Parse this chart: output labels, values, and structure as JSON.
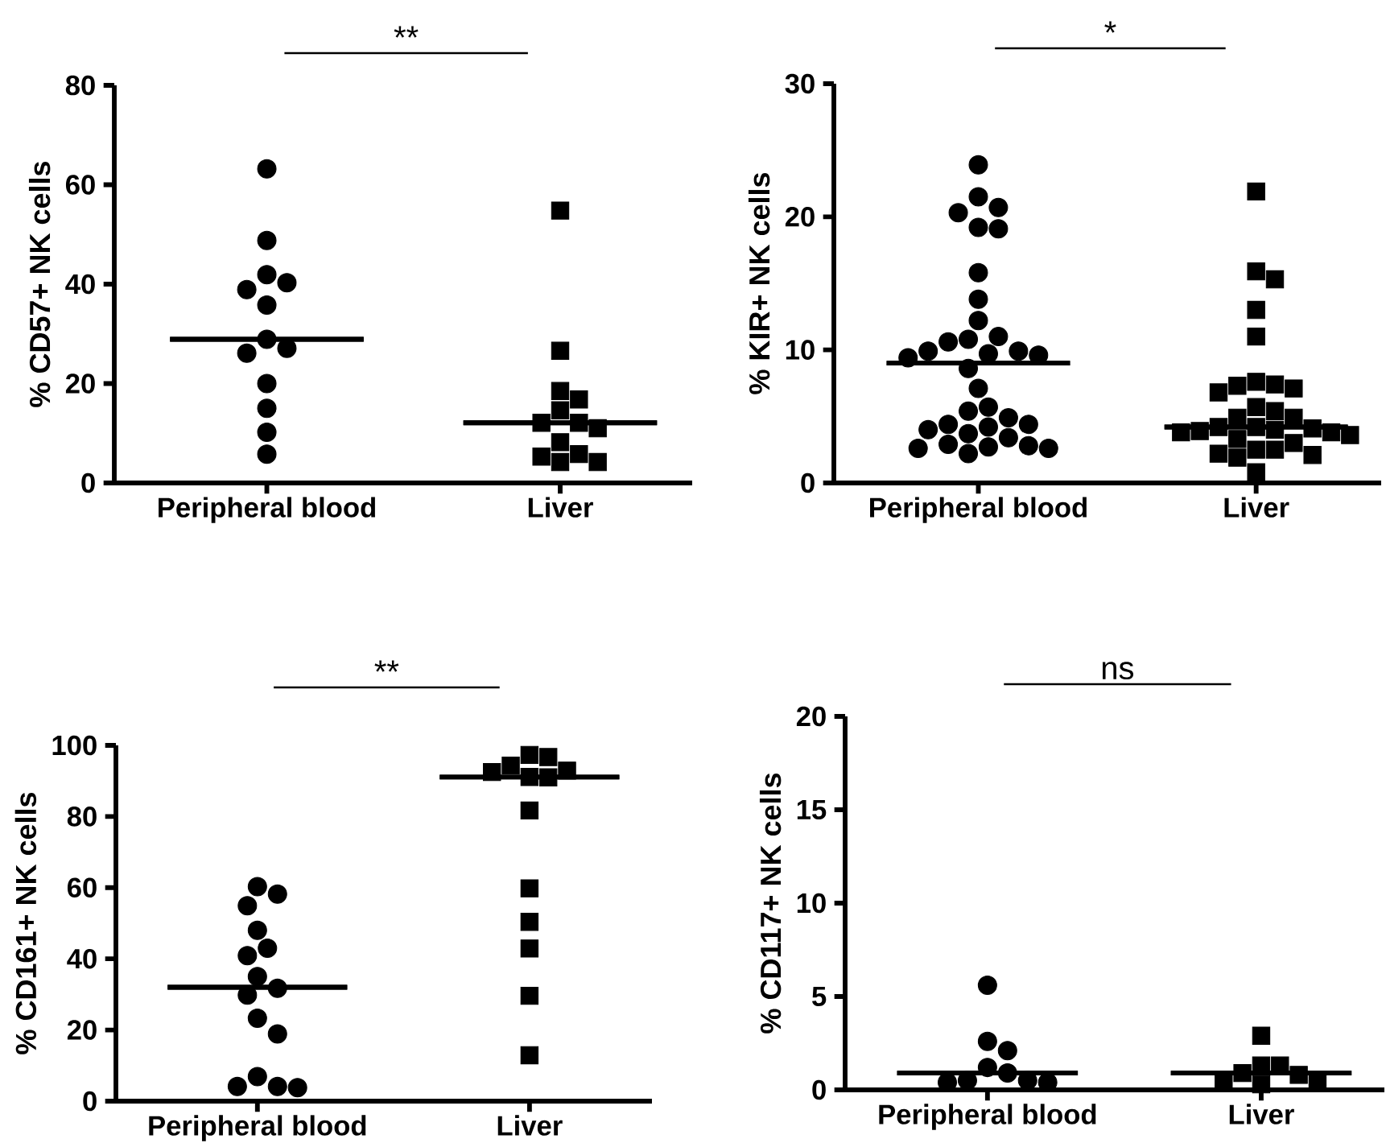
{
  "chart_data": [
    {
      "type": "scatter",
      "ylabel": "% CD57+ NK cells",
      "categories": [
        "Peripheral blood",
        "Liver"
      ],
      "ylim": [
        0,
        80
      ],
      "yticks": [
        0,
        20,
        40,
        60,
        80
      ],
      "annotations": [
        "**"
      ],
      "series": [
        {
          "marker": "circle",
          "color": "#000000",
          "x": [
            "Peripheral blood",
            "Peripheral blood",
            "Peripheral blood",
            "Peripheral blood",
            "Peripheral blood",
            "Peripheral blood",
            "Peripheral blood",
            "Peripheral blood",
            "Peripheral blood",
            "Peripheral blood",
            "Peripheral blood",
            "Peripheral blood",
            "Peripheral blood"
          ],
          "values": [
            63.2,
            48.8,
            41.9,
            40.3,
            38.9,
            35.8,
            28.9,
            27.1,
            26.1,
            20,
            15,
            10.2,
            5.8
          ]
        },
        {
          "marker": "square",
          "color": "#000000",
          "x": [
            "Liver",
            "Liver",
            "Liver",
            "Liver",
            "Liver",
            "Liver",
            "Liver",
            "Liver",
            "Liver",
            "Liver",
            "Liver",
            "Liver",
            "Liver"
          ],
          "values": [
            54.8,
            26.6,
            18.5,
            16.8,
            14.6,
            12.1,
            12.1,
            11,
            8.2,
            5.8,
            5.3,
            4.2,
            4.2
          ]
        },
        {
          "type": "box",
          "color": "#000000",
          "boxes": [
            {
              "low": 28.9,
              "q1": 28.9,
              "median": 28.9,
              "q3": 28.9,
              "high": 28.9
            },
            {
              "low": 12.1,
              "q1": 12.1,
              "median": 12.1,
              "q3": 12.1,
              "high": 12.1
            }
          ]
        }
      ]
    },
    {
      "type": "scatter",
      "ylabel": "% KIR+ NK cells",
      "categories": [
        "Peripheral blood",
        "Liver"
      ],
      "ylim": [
        0,
        30
      ],
      "yticks": [
        0,
        10,
        20,
        30
      ],
      "annotations": [
        "*"
      ],
      "series": [
        {
          "marker": "circle",
          "color": "#000000",
          "x": [
            "Peripheral blood",
            "Peripheral blood",
            "Peripheral blood",
            "Peripheral blood",
            "Peripheral blood",
            "Peripheral blood",
            "Peripheral blood",
            "Peripheral blood",
            "Peripheral blood",
            "Peripheral blood",
            "Peripheral blood",
            "Peripheral blood",
            "Peripheral blood",
            "Peripheral blood",
            "Peripheral blood",
            "Peripheral blood",
            "Peripheral blood",
            "Peripheral blood",
            "Peripheral blood",
            "Peripheral blood",
            "Peripheral blood",
            "Peripheral blood",
            "Peripheral blood",
            "Peripheral blood",
            "Peripheral blood",
            "Peripheral blood",
            "Peripheral blood",
            "Peripheral blood",
            "Peripheral blood",
            "Peripheral blood",
            "Peripheral blood",
            "Peripheral blood",
            "Peripheral blood",
            "Peripheral blood"
          ],
          "values": [
            23.9,
            21.5,
            20.7,
            20.3,
            19.2,
            19.1,
            15.8,
            13.8,
            12.2,
            11,
            10.8,
            10.6,
            9.9,
            9.9,
            9.7,
            9.6,
            9.4,
            8.6,
            7.1,
            5.7,
            5.4,
            4.9,
            4.4,
            4.4,
            4.2,
            4.0,
            3.7,
            3.4,
            2.9,
            2.8,
            2.7,
            2.6,
            2.6,
            2.2
          ]
        },
        {
          "marker": "square",
          "color": "#000000",
          "x": [
            "Liver",
            "Liver",
            "Liver",
            "Liver",
            "Liver",
            "Liver",
            "Liver",
            "Liver",
            "Liver",
            "Liver",
            "Liver",
            "Liver",
            "Liver",
            "Liver",
            "Liver",
            "Liver",
            "Liver",
            "Liver",
            "Liver",
            "Liver",
            "Liver",
            "Liver",
            "Liver",
            "Liver",
            "Liver",
            "Liver",
            "Liver",
            "Liver",
            "Liver",
            "Liver"
          ],
          "values": [
            21.9,
            15.9,
            15.3,
            13,
            11,
            7.6,
            7.4,
            7.3,
            7.1,
            6.8,
            5.7,
            5.4,
            4.9,
            4.9,
            4.2,
            4.2,
            4.1,
            4.0,
            3.9,
            3.8,
            3.8,
            3.6,
            3.3,
            3.0,
            2.5,
            2.5,
            2.2,
            2.1,
            1.9,
            0.8
          ]
        },
        {
          "type": "box",
          "color": "#000000",
          "boxes": [
            {
              "low": 9.0,
              "q1": 9.0,
              "median": 9.0,
              "q3": 9.0,
              "high": 9.0
            },
            {
              "low": 4.2,
              "q1": 4.2,
              "median": 4.2,
              "q3": 4.2,
              "high": 4.2
            }
          ]
        }
      ]
    },
    {
      "type": "scatter",
      "ylabel": "% CD161+ NK cells",
      "categories": [
        "Peripheral blood",
        "Liver"
      ],
      "ylim": [
        0,
        100
      ],
      "yticks": [
        0,
        20,
        40,
        60,
        80,
        100
      ],
      "annotations": [
        "**"
      ],
      "series": [
        {
          "marker": "circle",
          "color": "#000000",
          "x": [
            "Peripheral blood",
            "Peripheral blood",
            "Peripheral blood",
            "Peripheral blood",
            "Peripheral blood",
            "Peripheral blood",
            "Peripheral blood",
            "Peripheral blood",
            "Peripheral blood",
            "Peripheral blood",
            "Peripheral blood",
            "Peripheral blood",
            "Peripheral blood",
            "Peripheral blood",
            "Peripheral blood"
          ],
          "values": [
            60.3,
            58.2,
            54.9,
            48,
            43,
            40.9,
            35,
            31.7,
            29.8,
            23.3,
            18.9,
            6.9,
            4.1,
            4.1,
            3.8
          ]
        },
        {
          "marker": "square",
          "color": "#000000",
          "x": [
            "Liver",
            "Liver",
            "Liver",
            "Liver",
            "Liver",
            "Liver",
            "Liver",
            "Liver",
            "Liver",
            "Liver",
            "Liver",
            "Liver",
            "Liver"
          ],
          "values": [
            97.3,
            96.7,
            94.3,
            92.9,
            92.5,
            91.1,
            91,
            81.7,
            59.8,
            50.4,
            42.9,
            29.6,
            12.9
          ]
        },
        {
          "type": "box",
          "color": "#000000",
          "boxes": [
            {
              "low": 32.0,
              "q1": 32.0,
              "median": 32.0,
              "q3": 32.0,
              "high": 32.0
            },
            {
              "low": 91.1,
              "q1": 91.1,
              "median": 91.1,
              "q3": 91.1,
              "high": 91.1
            }
          ]
        }
      ]
    },
    {
      "type": "scatter",
      "ylabel": "% CD117+ NK cells",
      "categories": [
        "Peripheral blood",
        "Liver"
      ],
      "ylim": [
        0,
        20
      ],
      "yticks": [
        0,
        5,
        10,
        15,
        20
      ],
      "annotations": [
        "ns"
      ],
      "series": [
        {
          "marker": "circle",
          "color": "#000000",
          "x": [
            "Peripheral blood",
            "Peripheral blood",
            "Peripheral blood",
            "Peripheral blood",
            "Peripheral blood",
            "Peripheral blood",
            "Peripheral blood",
            "Peripheral blood",
            "Peripheral blood"
          ],
          "values": [
            5.6,
            2.6,
            2.1,
            1.2,
            0.9,
            0.5,
            0.5,
            0.4,
            0.4
          ]
        },
        {
          "marker": "square",
          "color": "#000000",
          "x": [
            "Liver",
            "Liver",
            "Liver",
            "Liver",
            "Liver",
            "Liver",
            "Liver",
            "Liver"
          ],
          "values": [
            2.9,
            1.3,
            1.3,
            0.9,
            0.8,
            0.5,
            0.5,
            0.3
          ]
        },
        {
          "type": "box",
          "color": "#000000",
          "boxes": [
            {
              "low": 0.9,
              "q1": 0.9,
              "median": 0.9,
              "q3": 0.9,
              "high": 0.9
            },
            {
              "low": 0.9,
              "q1": 0.9,
              "median": 0.9,
              "q3": 0.9,
              "high": 0.9
            }
          ]
        }
      ]
    }
  ]
}
